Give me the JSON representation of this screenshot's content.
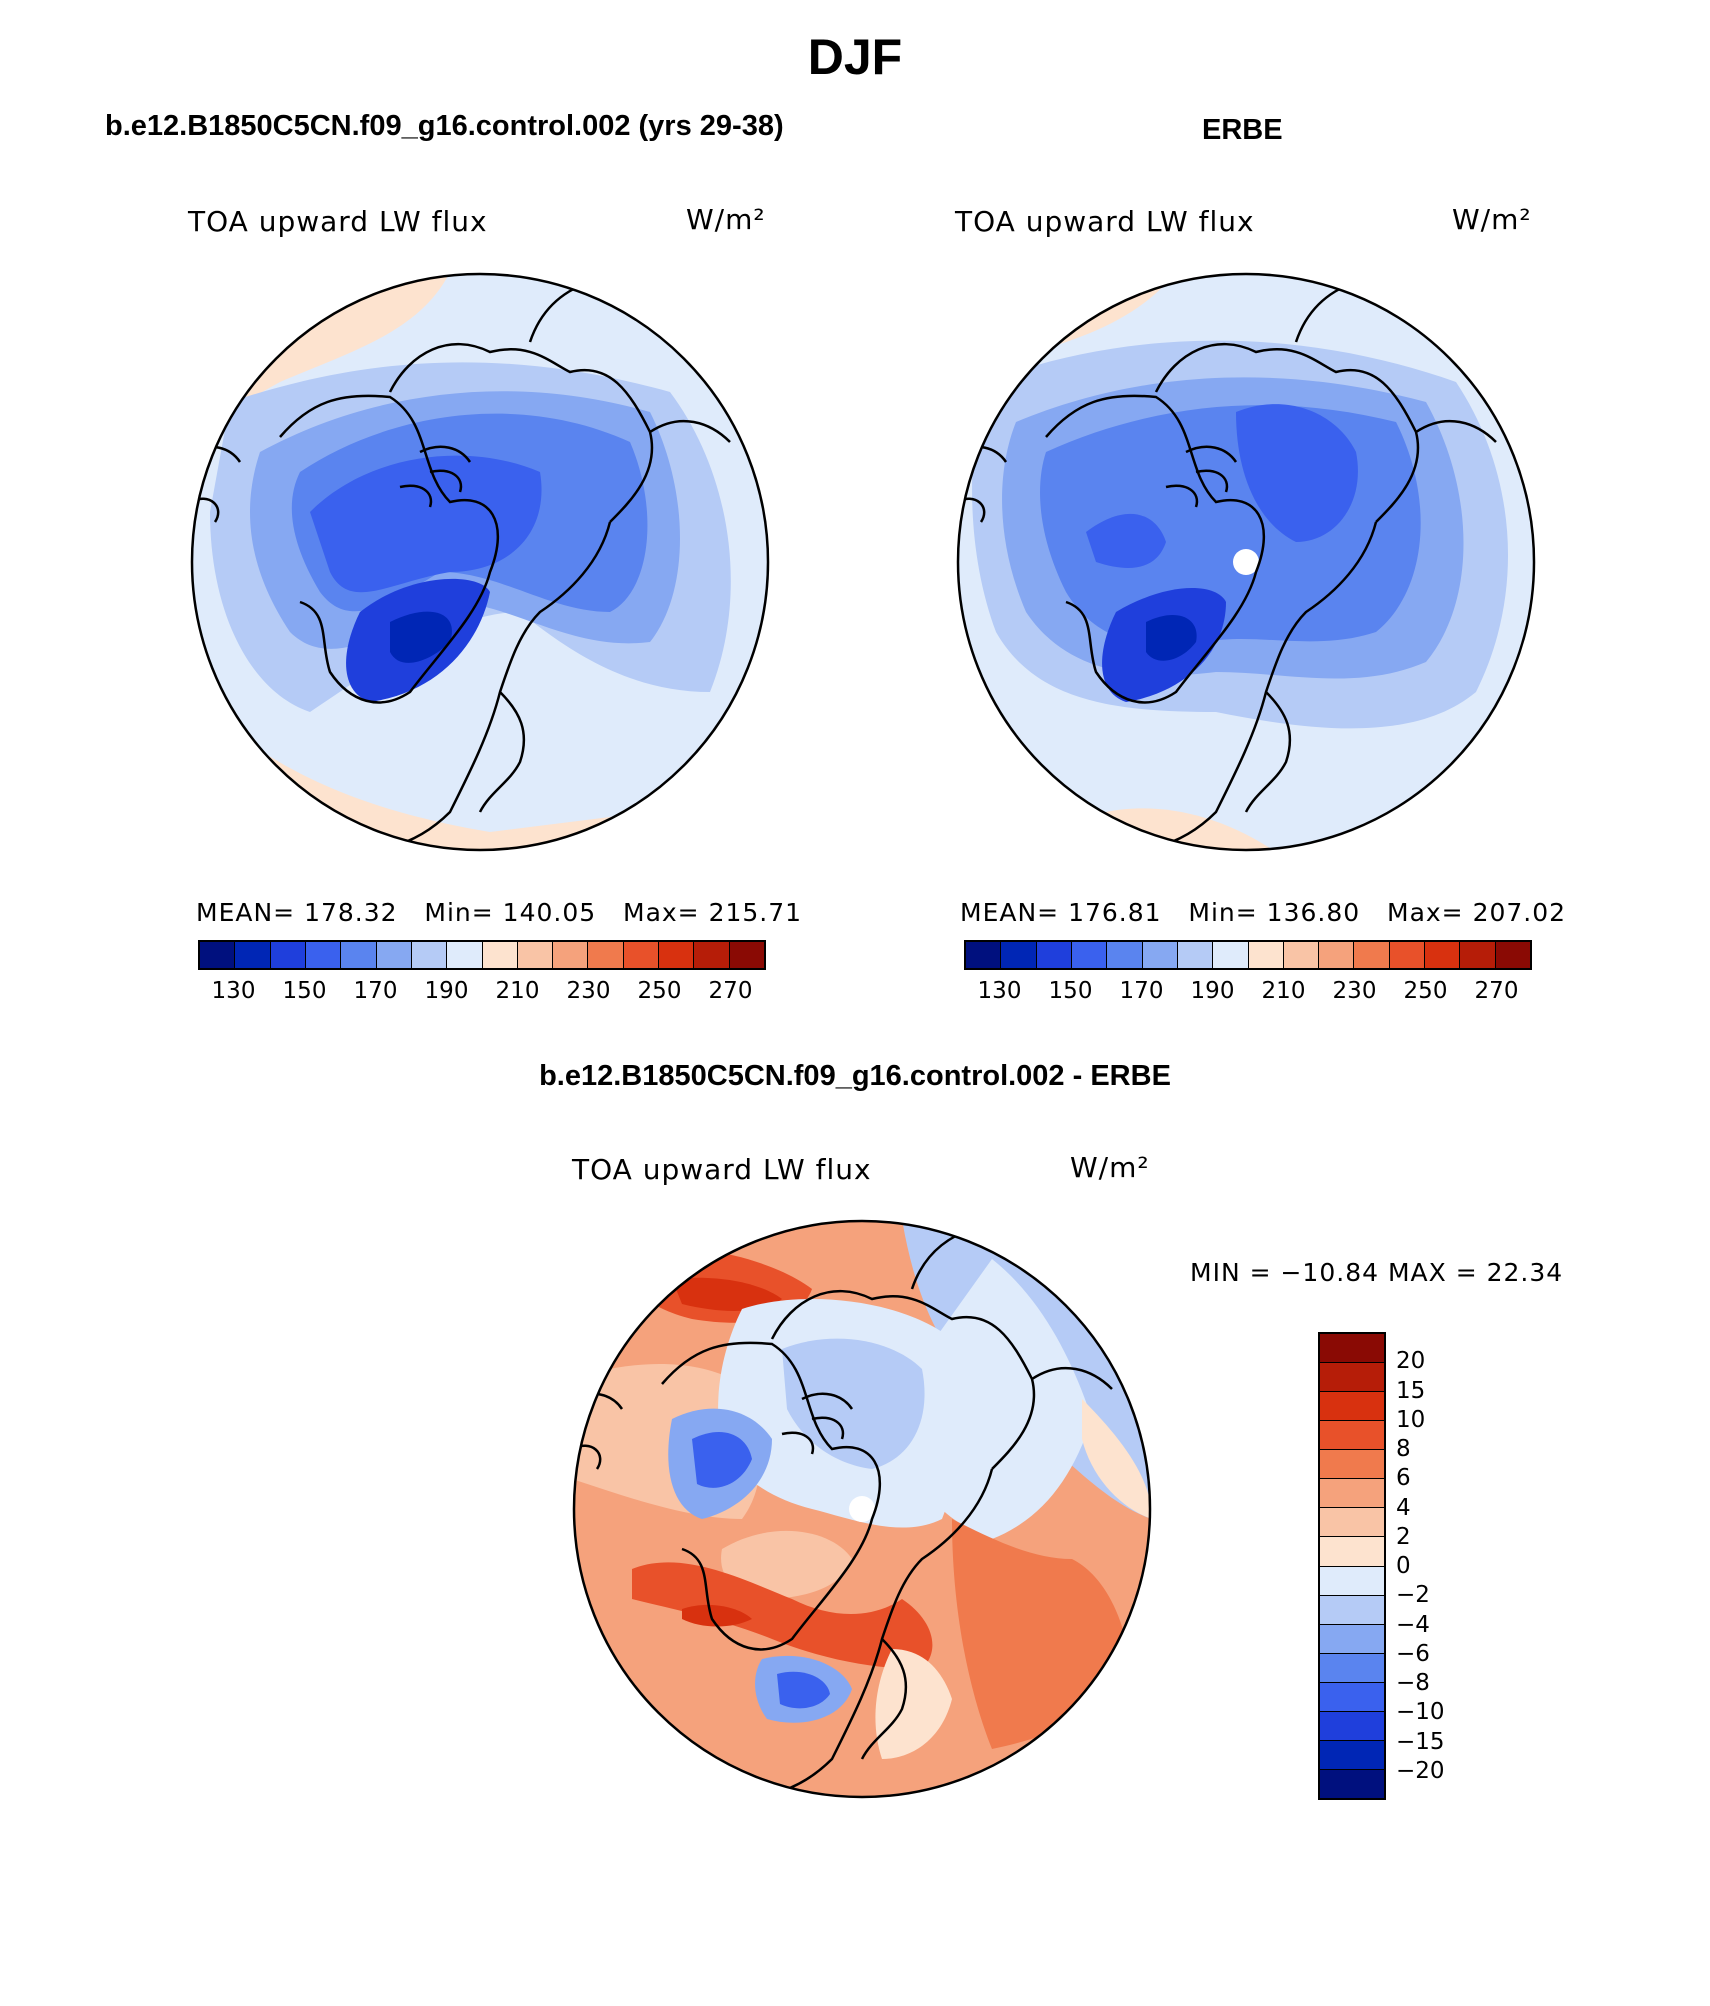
{
  "figure": {
    "season": "DJF"
  },
  "panels": {
    "model": {
      "header": "b.e12.B1850C5CN.f09_g16.control.002 (yrs 29-38)",
      "variable": "TOA upward LW flux",
      "units": "W/m²",
      "mean_label": "MEAN=",
      "mean": "178.32",
      "min_label": "Min=",
      "min": "140.05",
      "max_label": "Max=",
      "max": "215.71"
    },
    "obs": {
      "header": "ERBE",
      "variable": "TOA upward LW flux",
      "units": "W/m²",
      "mean_label": "MEAN=",
      "mean": "176.81",
      "min_label": "Min=",
      "min": "136.80",
      "max_label": "Max=",
      "max": "207.02"
    },
    "diff": {
      "header": "b.e12.B1850C5CN.f09_g16.control.002 - ERBE",
      "variable": "TOA upward LW flux",
      "units": "W/m²",
      "minmax_text": "MIN = −10.84 MAX =   22.34"
    }
  },
  "colorbars": {
    "absolute": {
      "tick_labels": [
        "130",
        "150",
        "170",
        "190",
        "210",
        "230",
        "250",
        "270"
      ],
      "colors": [
        "#00107e",
        "#0026b5",
        "#1f3fdc",
        "#3a61ee",
        "#5a84ef",
        "#86a8f2",
        "#b5cbf6",
        "#dfebfb",
        "#fde3cf",
        "#f9c4a6",
        "#f5a27c",
        "#f07a4d",
        "#e8512a",
        "#d8310f",
        "#b61d08",
        "#8a0a04"
      ]
    },
    "difference": {
      "tick_labels": [
        "20",
        "15",
        "10",
        "8",
        "6",
        "4",
        "2",
        "0",
        "−2",
        "−4",
        "−6",
        "−8",
        "−10",
        "−15",
        "−20"
      ],
      "colors": [
        "#8a0a04",
        "#b61d08",
        "#d8310f",
        "#e8512a",
        "#f07a4d",
        "#f5a27c",
        "#f9c4a6",
        "#fde3cf",
        "#dfebfb",
        "#b5cbf6",
        "#86a8f2",
        "#5a84ef",
        "#3a61ee",
        "#1f3fdc",
        "#0026b5",
        "#00107e"
      ]
    }
  }
}
